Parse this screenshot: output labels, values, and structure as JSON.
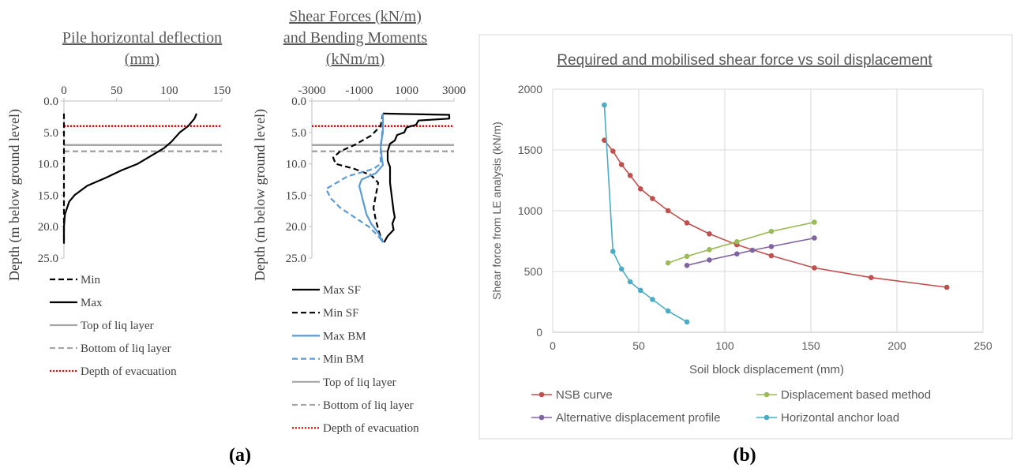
{
  "chart_data": [
    {
      "type": "line",
      "title": "Pile horizontal deflection (mm)",
      "title_lines": [
        "Pile horizontal deflection",
        "(mm)"
      ],
      "xlabel": "",
      "ylabel": "Depth (m below ground level)",
      "xlim": [
        0,
        150
      ],
      "ylim": [
        0,
        25
      ],
      "y_inverted": true,
      "x_axis_position": "top",
      "x_ticks": [
        "0",
        "50",
        "100",
        "150"
      ],
      "y_ticks": [
        "0.0",
        "5.0",
        "10.0",
        "15.0",
        "20.0",
        "25.0"
      ],
      "legend_position": "bottom",
      "series": [
        {
          "name": "Min",
          "color": "#000000",
          "dash": "dashed",
          "points": [
            [
              0,
              2
            ],
            [
              0,
              5
            ],
            [
              0,
              10
            ],
            [
              0,
              15
            ],
            [
              0,
              20
            ],
            [
              0,
              22.7
            ]
          ]
        },
        {
          "name": "Max",
          "color": "#000000",
          "dash": "solid",
          "points": [
            [
              126,
              2
            ],
            [
              124,
              2.8
            ],
            [
              118,
              4
            ],
            [
              110,
              5
            ],
            [
              102,
              6.5
            ],
            [
              95,
              7.5
            ],
            [
              85,
              8.5
            ],
            [
              70,
              10
            ],
            [
              55,
              11
            ],
            [
              40,
              12.2
            ],
            [
              22,
              13.5
            ],
            [
              10,
              15
            ],
            [
              5,
              16
            ],
            [
              1,
              18
            ],
            [
              0,
              20
            ],
            [
              0,
              22.7
            ]
          ]
        },
        {
          "name": "Top of liq layer",
          "color": "#a6a6a6",
          "dash": "solid",
          "points": [
            [
              0,
              7
            ],
            [
              150,
              7
            ]
          ]
        },
        {
          "name": "Bottom of liq layer",
          "color": "#a6a6a6",
          "dash": "dashed",
          "points": [
            [
              0,
              8
            ],
            [
              150,
              8
            ]
          ]
        },
        {
          "name": "Depth of evacuation",
          "color": "#ff0000",
          "dash": "dotted",
          "points": [
            [
              0,
              4
            ],
            [
              150,
              4
            ]
          ]
        }
      ]
    },
    {
      "type": "line",
      "title": "Shear Forces (kN/m) and Bending Moments (kNm/m)",
      "title_lines": [
        "Shear Forces (kN/m)",
        "and Bending Moments",
        "(kNm/m)"
      ],
      "xlabel": "",
      "ylabel": "Depth (m below ground level)",
      "xlim": [
        -3000,
        3000
      ],
      "ylim": [
        0,
        25
      ],
      "y_inverted": true,
      "x_axis_position": "top",
      "x_ticks": [
        "-3000",
        "-1000",
        "1000",
        "3000"
      ],
      "y_ticks": [
        "0.0",
        "5.0",
        "10.0",
        "15.0",
        "20.0",
        "25.0"
      ],
      "legend_position": "bottom",
      "series": [
        {
          "name": "Max SF",
          "color": "#000000",
          "dash": "solid",
          "points": [
            [
              0,
              2
            ],
            [
              2800,
              2.2
            ],
            [
              2800,
              2.8
            ],
            [
              1500,
              3.1
            ],
            [
              1400,
              3.8
            ],
            [
              1000,
              4.2
            ],
            [
              900,
              5
            ],
            [
              600,
              5.4
            ],
            [
              500,
              6.3
            ],
            [
              300,
              6.8
            ],
            [
              200,
              8
            ],
            [
              200,
              9.5
            ],
            [
              300,
              10.5
            ],
            [
              300,
              13
            ],
            [
              400,
              16
            ],
            [
              450,
              17.5
            ],
            [
              500,
              18.5
            ],
            [
              400,
              19.5
            ],
            [
              450,
              20.5
            ],
            [
              200,
              21.5
            ],
            [
              50,
              22.5
            ]
          ]
        },
        {
          "name": "Min SF",
          "color": "#000000",
          "dash": "dashed",
          "points": [
            [
              0,
              2
            ],
            [
              -100,
              4
            ],
            [
              -500,
              5.5
            ],
            [
              -1200,
              7
            ],
            [
              -1800,
              8
            ],
            [
              -2100,
              9
            ],
            [
              -2000,
              10
            ],
            [
              -1200,
              10.8
            ],
            [
              -500,
              11.8
            ],
            [
              -200,
              13
            ],
            [
              -300,
              15
            ],
            [
              -400,
              17
            ],
            [
              -300,
              19
            ],
            [
              -150,
              21
            ],
            [
              0,
              22.5
            ]
          ]
        },
        {
          "name": "Max BM",
          "color": "#5b9bd5",
          "dash": "solid",
          "points": [
            [
              0,
              2
            ],
            [
              0,
              5
            ],
            [
              -100,
              7
            ],
            [
              -50,
              9
            ],
            [
              0,
              10.2
            ],
            [
              -300,
              11.5
            ],
            [
              -900,
              12.5
            ],
            [
              -1000,
              13.5
            ],
            [
              -900,
              15
            ],
            [
              -800,
              16.5
            ],
            [
              -700,
              18
            ],
            [
              -500,
              19.5
            ],
            [
              -200,
              21
            ],
            [
              0,
              22.5
            ]
          ]
        },
        {
          "name": "Min BM",
          "color": "#5b9bd5",
          "dash": "dashed",
          "points": [
            [
              0,
              2
            ],
            [
              -50,
              6
            ],
            [
              -100,
              8
            ],
            [
              -100,
              10
            ],
            [
              -400,
              10.8
            ],
            [
              -1500,
              12
            ],
            [
              -2400,
              14
            ],
            [
              -2200,
              15.5
            ],
            [
              -1800,
              17
            ],
            [
              -1200,
              18.5
            ],
            [
              -600,
              20
            ],
            [
              -200,
              21.5
            ],
            [
              0,
              22.5
            ]
          ]
        },
        {
          "name": "Top of liq layer",
          "color": "#a6a6a6",
          "dash": "solid",
          "points": [
            [
              -3000,
              7
            ],
            [
              3000,
              7
            ]
          ]
        },
        {
          "name": "Bottom of liq layer",
          "color": "#a6a6a6",
          "dash": "dashed",
          "points": [
            [
              -3000,
              8
            ],
            [
              3000,
              8
            ]
          ]
        },
        {
          "name": "Depth of evacuation",
          "color": "#ff0000",
          "dash": "dotted",
          "points": [
            [
              -3000,
              4
            ],
            [
              3000,
              4
            ]
          ]
        }
      ]
    },
    {
      "type": "line",
      "title": "Required and mobilised shear force vs soil displacement",
      "xlabel": "Soil block displacement (mm)",
      "ylabel": "Shear force from LE analysis (kN/m)",
      "xlim": [
        0,
        250
      ],
      "ylim": [
        0,
        2000
      ],
      "x_ticks": [
        "0",
        "50",
        "100",
        "150",
        "200",
        "250"
      ],
      "y_ticks": [
        "0",
        "500",
        "1000",
        "1500",
        "2000"
      ],
      "grid": true,
      "legend_position": "bottom",
      "series": [
        {
          "name": "NSB curve",
          "color": "#c0504d",
          "markers": true,
          "points": [
            [
              30,
              1580
            ],
            [
              35,
              1490
            ],
            [
              40,
              1380
            ],
            [
              45,
              1290
            ],
            [
              51,
              1180
            ],
            [
              58,
              1100
            ],
            [
              67,
              1000
            ],
            [
              78,
              900
            ],
            [
              91,
              810
            ],
            [
              107,
              720
            ],
            [
              127,
              630
            ],
            [
              152,
              530
            ],
            [
              185,
              450
            ],
            [
              229,
              370
            ]
          ]
        },
        {
          "name": "Displacement based method",
          "color": "#9bbb59",
          "markers": true,
          "points": [
            [
              67,
              570
            ],
            [
              78,
              625
            ],
            [
              91,
              680
            ],
            [
              107,
              745
            ],
            [
              127,
              830
            ],
            [
              152,
              905
            ]
          ]
        },
        {
          "name": "Alternative displacement profile",
          "color": "#8064a2",
          "markers": true,
          "points": [
            [
              78,
              550
            ],
            [
              91,
              595
            ],
            [
              107,
              645
            ],
            [
              116,
              675
            ],
            [
              127,
              705
            ],
            [
              152,
              775
            ]
          ]
        },
        {
          "name": "Horizontal anchor load",
          "color": "#4bacc6",
          "markers": true,
          "points": [
            [
              30,
              1870
            ],
            [
              35,
              665
            ],
            [
              40,
              520
            ],
            [
              45,
              415
            ],
            [
              51,
              345
            ],
            [
              58,
              270
            ],
            [
              67,
              175
            ],
            [
              78,
              85
            ]
          ]
        }
      ]
    }
  ],
  "captions": {
    "a": "(a)",
    "b": "(b)"
  }
}
